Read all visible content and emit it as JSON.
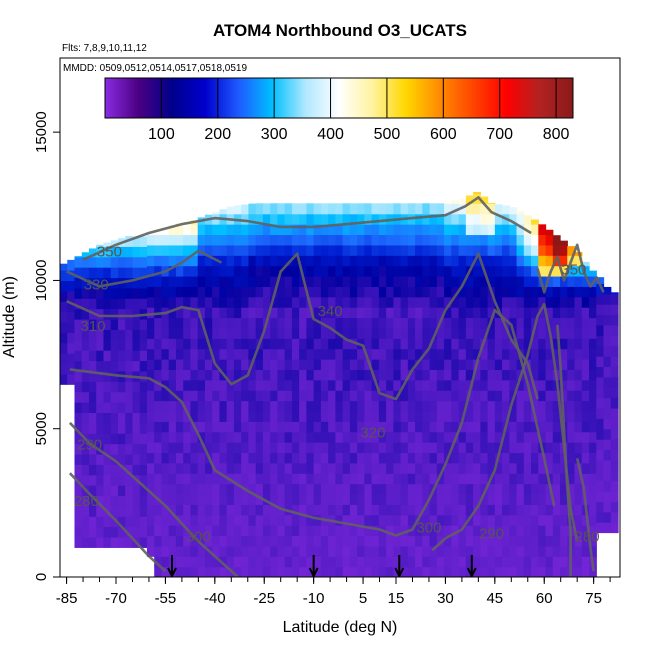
{
  "chart_data": {
    "type": "heatmap",
    "title": "ATOM4 Northbound O3_UCATS",
    "subtitle_flights": "Flts: 7,8,9,10,11,12",
    "subtitle_dates": "MMDD: 0509,0512,0514,0517,0518,0519",
    "xlabel": "Latitude (deg N)",
    "ylabel": "Altitude (m)",
    "xlim": [
      -87,
      83
    ],
    "ylim": [
      0,
      17500
    ],
    "xticks": [
      -85,
      -70,
      -55,
      -40,
      -25,
      -10,
      5,
      15,
      30,
      45,
      60,
      75
    ],
    "yticks": [
      0,
      5000,
      10000,
      15000
    ],
    "colorbar": {
      "range": [
        0,
        830
      ],
      "ticks": [
        100,
        200,
        300,
        400,
        500,
        600,
        700,
        800
      ],
      "colors": [
        "#8a2be2",
        "#4b0082",
        "#00008b",
        "#0000cd",
        "#1e5bff",
        "#00bfff",
        "#b0e8ff",
        "#ffffff",
        "#fff3a0",
        "#ffd700",
        "#ff8c00",
        "#ff4500",
        "#ff0000",
        "#b22222",
        "#8b1a1a"
      ]
    },
    "contour_labels": [
      "350",
      "330",
      "310",
      "340",
      "320",
      "290",
      "280",
      "300",
      "300",
      "290",
      "280",
      "350"
    ],
    "flight_markers": [
      -53,
      -10,
      16,
      38
    ]
  }
}
